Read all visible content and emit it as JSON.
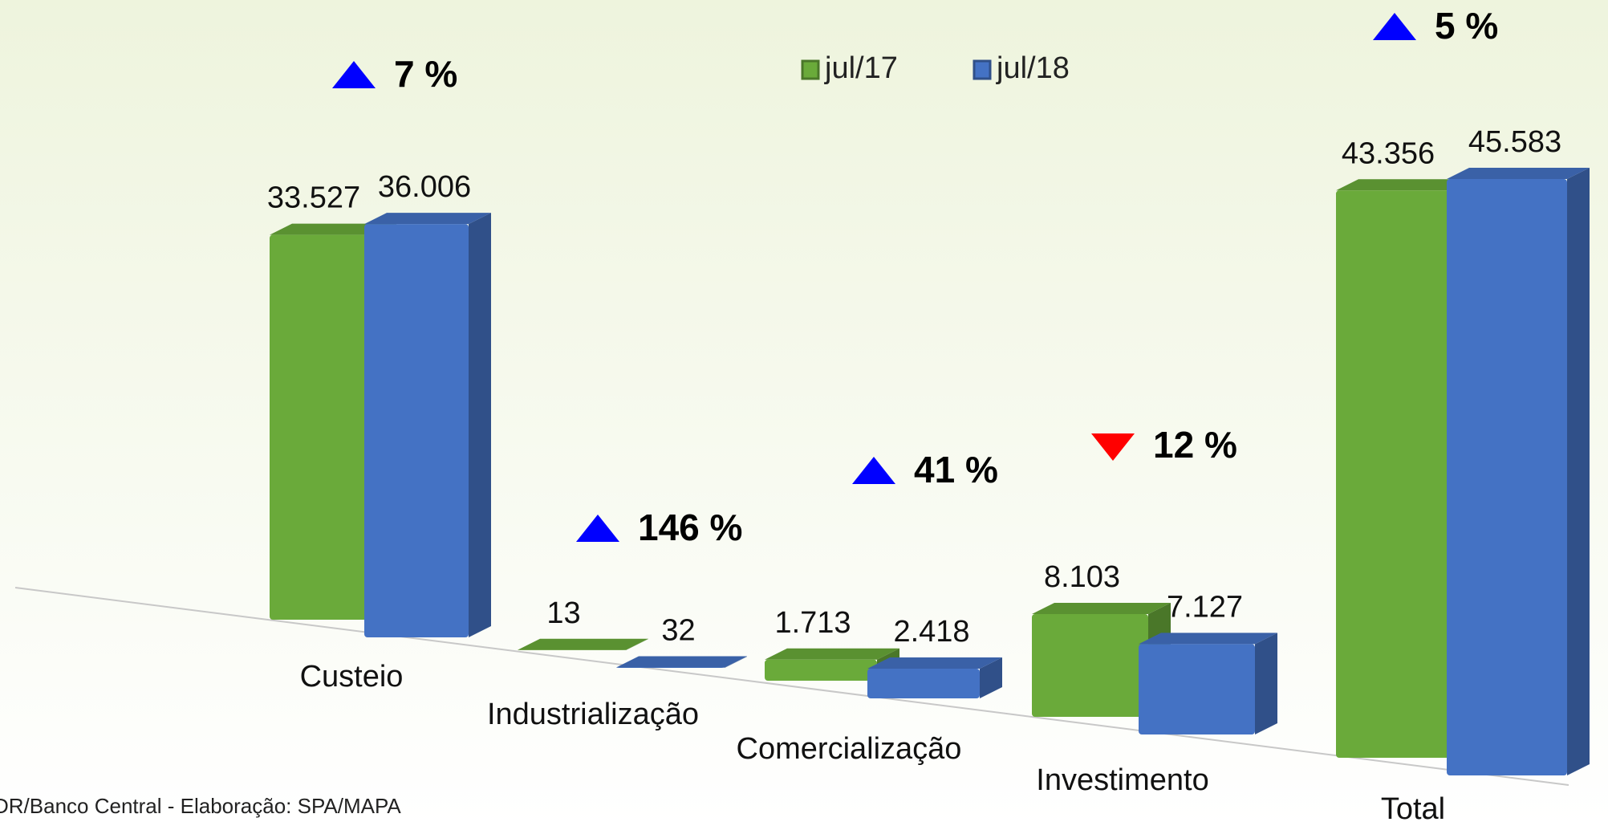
{
  "chart_data": {
    "type": "bar3d",
    "categories": [
      "Custeio",
      "Industrialização",
      "Comercialização",
      "Investimento",
      "Total"
    ],
    "series": [
      {
        "name": "jul/17",
        "color": "#6aaa3a",
        "values": [
          33527,
          13,
          1713,
          8103,
          43356
        ],
        "value_labels": [
          "33.527",
          "13",
          "1.713",
          "8.103",
          "43.356"
        ]
      },
      {
        "name": "jul/18",
        "color": "#4472c4",
        "values": [
          36006,
          32,
          2418,
          7127,
          45583
        ],
        "value_labels": [
          "36.006",
          "32",
          "2.418",
          "7.127",
          "45.583"
        ]
      }
    ],
    "annotations": [
      {
        "label": "7 %",
        "direction": "up",
        "color": "#0000ff"
      },
      {
        "label": "146 %",
        "direction": "up",
        "color": "#0000ff"
      },
      {
        "label": "41 %",
        "direction": "up",
        "color": "#0000ff"
      },
      {
        "label": "12 %",
        "direction": "down",
        "color": "#ff0000"
      },
      {
        "label": "5 %",
        "direction": "up",
        "color": "#0000ff"
      }
    ],
    "source": "DR/Banco Central - Elaboração: SPA/MAPA"
  }
}
